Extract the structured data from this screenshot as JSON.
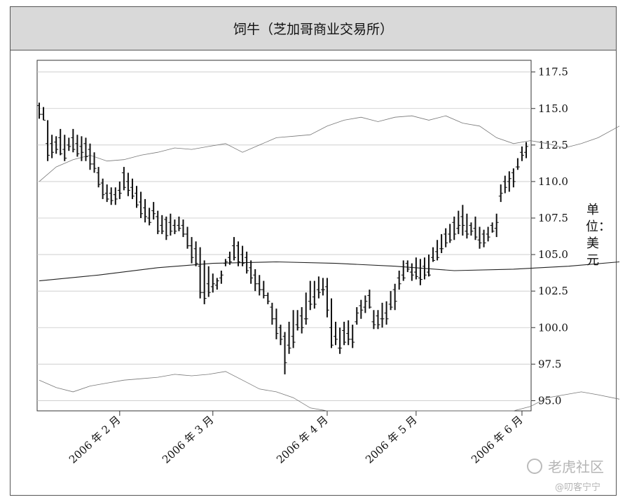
{
  "chart_data": {
    "type": "bar",
    "subtype": "ohlc",
    "title": "饲牛（芝加哥商业交易所）",
    "ylabel": "单位：美元",
    "xlabel": "",
    "ylim": [
      94.3,
      118.3
    ],
    "yticks": [
      95.0,
      97.5,
      100.0,
      102.5,
      105.0,
      107.5,
      110.0,
      112.5,
      115.0,
      117.5
    ],
    "ytick_labels": [
      "95.0",
      "97.5",
      "100.0",
      "102.5",
      "105.0",
      "107.5",
      "110.0",
      "112.5",
      "115.0",
      "117.5"
    ],
    "xtick_labels": [
      "2006 年 2 月",
      "2006 年 3 月",
      "2006 年 4 月",
      "2006 年 5 月",
      "2006 年 6 月"
    ],
    "xtick_bar_index": [
      19,
      41,
      68,
      89,
      114
    ],
    "grid": {
      "horizontal": true,
      "vertical": false
    },
    "series": [
      {
        "style": "price-bars",
        "high": [
          115.4,
          115.1,
          114.2,
          113.2,
          113.1,
          113.6,
          113.2,
          113.0,
          113.6,
          113.2,
          113.1,
          113.0,
          112.6,
          112.0,
          111.0,
          110.2,
          109.8,
          109.6,
          109.6,
          110.0,
          111.0,
          110.6,
          110.2,
          109.7,
          109.3,
          108.8,
          108.2,
          108.6,
          108.0,
          107.7,
          107.6,
          107.8,
          107.4,
          107.6,
          107.4,
          106.9,
          106.2,
          105.9,
          105.5,
          104.6,
          104.2,
          103.7,
          103.4,
          103.9,
          104.7,
          105.2,
          106.2,
          105.9,
          105.6,
          105.2,
          104.6,
          104.0,
          103.6,
          103.2,
          102.4,
          101.7,
          101.3,
          100.2,
          99.7,
          100.4,
          101.2,
          101.2,
          101.4,
          102.4,
          103.2,
          103.2,
          103.5,
          103.4,
          103.4,
          102.0,
          100.4,
          100.0,
          100.4,
          100.5,
          100.2,
          101.4,
          101.9,
          102.2,
          102.6,
          101.2,
          101.2,
          101.7,
          101.8,
          102.5,
          103.0,
          103.9,
          104.6,
          104.6,
          104.4,
          104.8,
          104.7,
          104.8,
          105.0,
          105.5,
          106.0,
          106.4,
          106.8,
          107.1,
          107.6,
          108.0,
          108.4,
          107.8,
          107.2,
          107.6,
          106.9,
          106.7,
          106.9,
          107.2,
          107.8,
          109.8,
          110.4,
          110.7,
          110.9,
          111.6,
          112.4,
          112.7
        ],
        "low": [
          114.3,
          114.2,
          111.4,
          111.6,
          111.9,
          111.8,
          111.4,
          112.1,
          112.0,
          111.7,
          111.4,
          111.4,
          110.8,
          110.6,
          109.6,
          108.8,
          108.6,
          108.4,
          108.4,
          108.8,
          109.4,
          109.0,
          108.8,
          108.2,
          107.5,
          107.2,
          107.0,
          107.4,
          106.4,
          106.4,
          106.0,
          106.3,
          106.4,
          106.6,
          106.2,
          105.4,
          104.4,
          104.2,
          102.0,
          101.6,
          102.1,
          102.4,
          102.6,
          103.0,
          104.2,
          104.3,
          104.6,
          104.2,
          104.2,
          103.7,
          103.0,
          102.5,
          102.2,
          102.0,
          101.6,
          100.2,
          99.2,
          98.8,
          96.8,
          98.2,
          98.6,
          99.8,
          99.6,
          100.2,
          101.2,
          101.3,
          102.0,
          102.2,
          100.7,
          98.6,
          98.8,
          98.2,
          98.8,
          98.8,
          98.6,
          100.2,
          100.6,
          101.0,
          101.3,
          99.9,
          99.9,
          100.0,
          100.2,
          101.2,
          101.2,
          102.6,
          103.2,
          103.8,
          103.2,
          103.3,
          102.9,
          103.3,
          103.5,
          104.5,
          104.6,
          105.1,
          105.5,
          105.8,
          106.0,
          106.4,
          106.3,
          106.1,
          106.3,
          106.0,
          105.4,
          105.5,
          105.9,
          106.5,
          106.2,
          108.6,
          109.2,
          109.3,
          109.6,
          110.8,
          111.4,
          111.6
        ],
        "open": [
          115.2,
          114.6,
          112.6,
          112.6,
          112.7,
          113.0,
          112.2,
          112.5,
          113.0,
          112.6,
          112.4,
          112.6,
          112.2,
          111.2,
          110.6,
          109.9,
          109.2,
          109.2,
          109.1,
          109.4,
          110.6,
          110.0,
          109.6,
          109.2,
          108.6,
          108.2,
          107.5,
          108.0,
          107.6,
          107.0,
          107.4,
          107.2,
          107.0,
          107.0,
          107.0,
          106.4,
          105.6,
          105.4,
          104.2,
          102.4,
          103.0,
          102.8,
          102.9,
          103.4,
          104.4,
          104.8,
          105.6,
          105.6,
          105.0,
          104.8,
          104.1,
          103.6,
          103.0,
          102.6,
          102.2,
          101.4,
          100.6,
          100.0,
          99.4,
          98.8,
          99.4,
          100.2,
          100.8,
          100.6,
          101.8,
          102.1,
          102.6,
          102.6,
          102.8,
          100.0,
          99.4,
          98.6,
          99.8,
          99.6,
          99.2,
          100.4,
          101.5,
          101.4,
          102.2,
          100.4,
          100.8,
          100.6,
          101.0,
          101.6,
          102.6,
          103.4,
          103.6,
          104.4,
          103.8,
          103.8,
          103.4,
          104.2,
          103.8,
          104.8,
          105.2,
          105.4,
          106.4,
          106.4,
          107.2,
          106.8,
          107.6,
          106.6,
          107.0,
          106.8,
          106.0,
          106.4,
          106.4,
          107.0,
          106.8,
          109.0,
          110.0,
          110.0,
          110.6,
          111.0,
          112.0,
          112.0
        ],
        "close": [
          114.6,
          114.2,
          111.8,
          112.0,
          112.2,
          111.9,
          111.6,
          112.4,
          112.2,
          111.9,
          112.0,
          111.7,
          111.2,
          110.9,
          109.8,
          109.1,
          108.8,
          108.7,
          108.8,
          109.2,
          109.6,
          109.4,
          109.0,
          108.4,
          107.8,
          107.6,
          107.2,
          107.8,
          106.6,
          106.6,
          106.3,
          106.6,
          106.6,
          106.8,
          106.4,
          105.6,
          104.8,
          104.4,
          102.4,
          102.0,
          102.4,
          103.0,
          103.2,
          103.6,
          104.5,
          104.5,
          104.8,
          104.5,
          104.4,
          103.9,
          103.4,
          103.0,
          102.6,
          102.2,
          101.8,
          100.6,
          99.6,
          99.2,
          97.6,
          98.6,
          99.0,
          100.0,
          100.0,
          100.6,
          101.6,
          101.6,
          102.4,
          102.6,
          101.2,
          98.8,
          99.2,
          98.6,
          99.0,
          99.2,
          99.0,
          101.0,
          101.2,
          101.8,
          101.4,
          100.2,
          100.2,
          100.6,
          100.6,
          101.4,
          101.8,
          103.0,
          103.4,
          104.0,
          103.6,
          103.5,
          103.3,
          103.6,
          103.6,
          104.6,
          104.8,
          105.4,
          105.8,
          106.0,
          106.4,
          107.0,
          107.0,
          106.4,
          106.6,
          106.2,
          105.8,
          105.8,
          106.2,
          106.6,
          107.2,
          109.2,
          109.6,
          110.2,
          110.0,
          111.0,
          111.8,
          112.4
        ]
      },
      {
        "style": "moving-average",
        "x": [
          0,
          14,
          28,
          41,
          56,
          70,
          84,
          98,
          112,
          125,
          137
        ],
        "values": [
          103.2,
          103.6,
          104.1,
          104.4,
          104.5,
          104.4,
          104.2,
          103.9,
          104.0,
          104.2,
          104.5
        ]
      },
      {
        "style": "upper-band",
        "x": [
          0,
          4,
          8,
          12,
          16,
          20,
          24,
          28,
          32,
          36,
          40,
          44,
          48,
          52,
          56,
          60,
          64,
          68,
          72,
          76,
          80,
          84,
          88,
          92,
          96,
          100,
          104,
          108,
          112,
          116,
          120,
          124,
          128,
          132,
          137
        ],
        "values": [
          110.0,
          111.0,
          111.5,
          111.8,
          111.4,
          111.5,
          111.8,
          112.0,
          112.3,
          112.2,
          112.4,
          112.6,
          112.0,
          112.5,
          113.0,
          113.1,
          113.2,
          113.8,
          114.2,
          114.4,
          114.1,
          114.4,
          114.5,
          114.2,
          114.5,
          114.0,
          113.8,
          113.0,
          112.6,
          112.8,
          112.6,
          112.3,
          112.6,
          113.0,
          113.8
        ]
      },
      {
        "style": "lower-band",
        "x": [
          0,
          4,
          8,
          12,
          16,
          20,
          24,
          28,
          32,
          36,
          40,
          44,
          48,
          52,
          56,
          60,
          64,
          68,
          72,
          76,
          80,
          84,
          88,
          92,
          96,
          100,
          104,
          108,
          112,
          116,
          120,
          124,
          128,
          132,
          137
        ],
        "values": [
          96.4,
          95.9,
          95.6,
          96.0,
          96.2,
          96.4,
          96.5,
          96.6,
          96.8,
          96.7,
          96.8,
          97.0,
          96.4,
          95.8,
          95.6,
          95.2,
          94.5,
          94.3,
          94.3,
          94.3,
          94.3,
          94.3,
          94.3,
          94.3,
          94.3,
          94.3,
          94.3,
          94.3,
          94.3,
          94.6,
          95.2,
          95.4,
          95.6,
          95.4,
          95.1
        ]
      }
    ]
  },
  "watermark": {
    "brand": "老虎社区",
    "handle": "@叨客宁宁"
  }
}
